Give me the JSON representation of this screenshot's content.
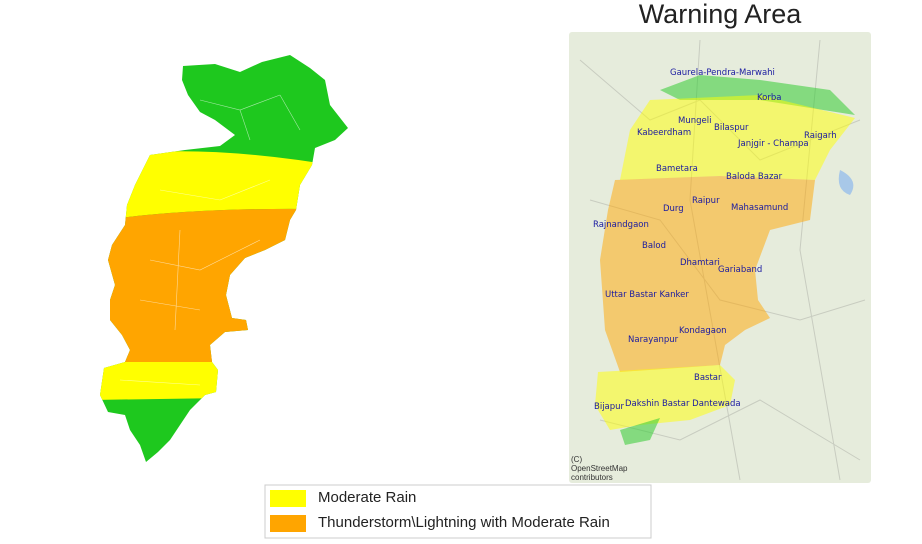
{
  "title": "Warning Area",
  "districts": [
    "Gaurela-Pendra-Marwahi",
    "Korba",
    "Mungeli",
    "Bilaspur",
    "Kabeerdham",
    "Raigarh",
    "Janjgir - Champa",
    "Bametara",
    "Baloda Bazar",
    "Raipur",
    "Durg",
    "Mahasamund",
    "Rajnandgaon",
    "Balod",
    "Dhamtari",
    "Gariaband",
    "Uttar Bastar Kanker",
    "Kondagaon",
    "Narayanpur",
    "Bastar",
    "Dakshin Bastar Dantewada",
    "Bijapur"
  ],
  "attribution": [
    "(C)",
    "OpenStreetMap",
    "contributors"
  ],
  "legend": [
    {
      "label": "Moderate Rain",
      "color": "#ffff00"
    },
    {
      "label": "Thunderstorm\\Lightning with Moderate Rain",
      "color": "#ffa500"
    }
  ]
}
